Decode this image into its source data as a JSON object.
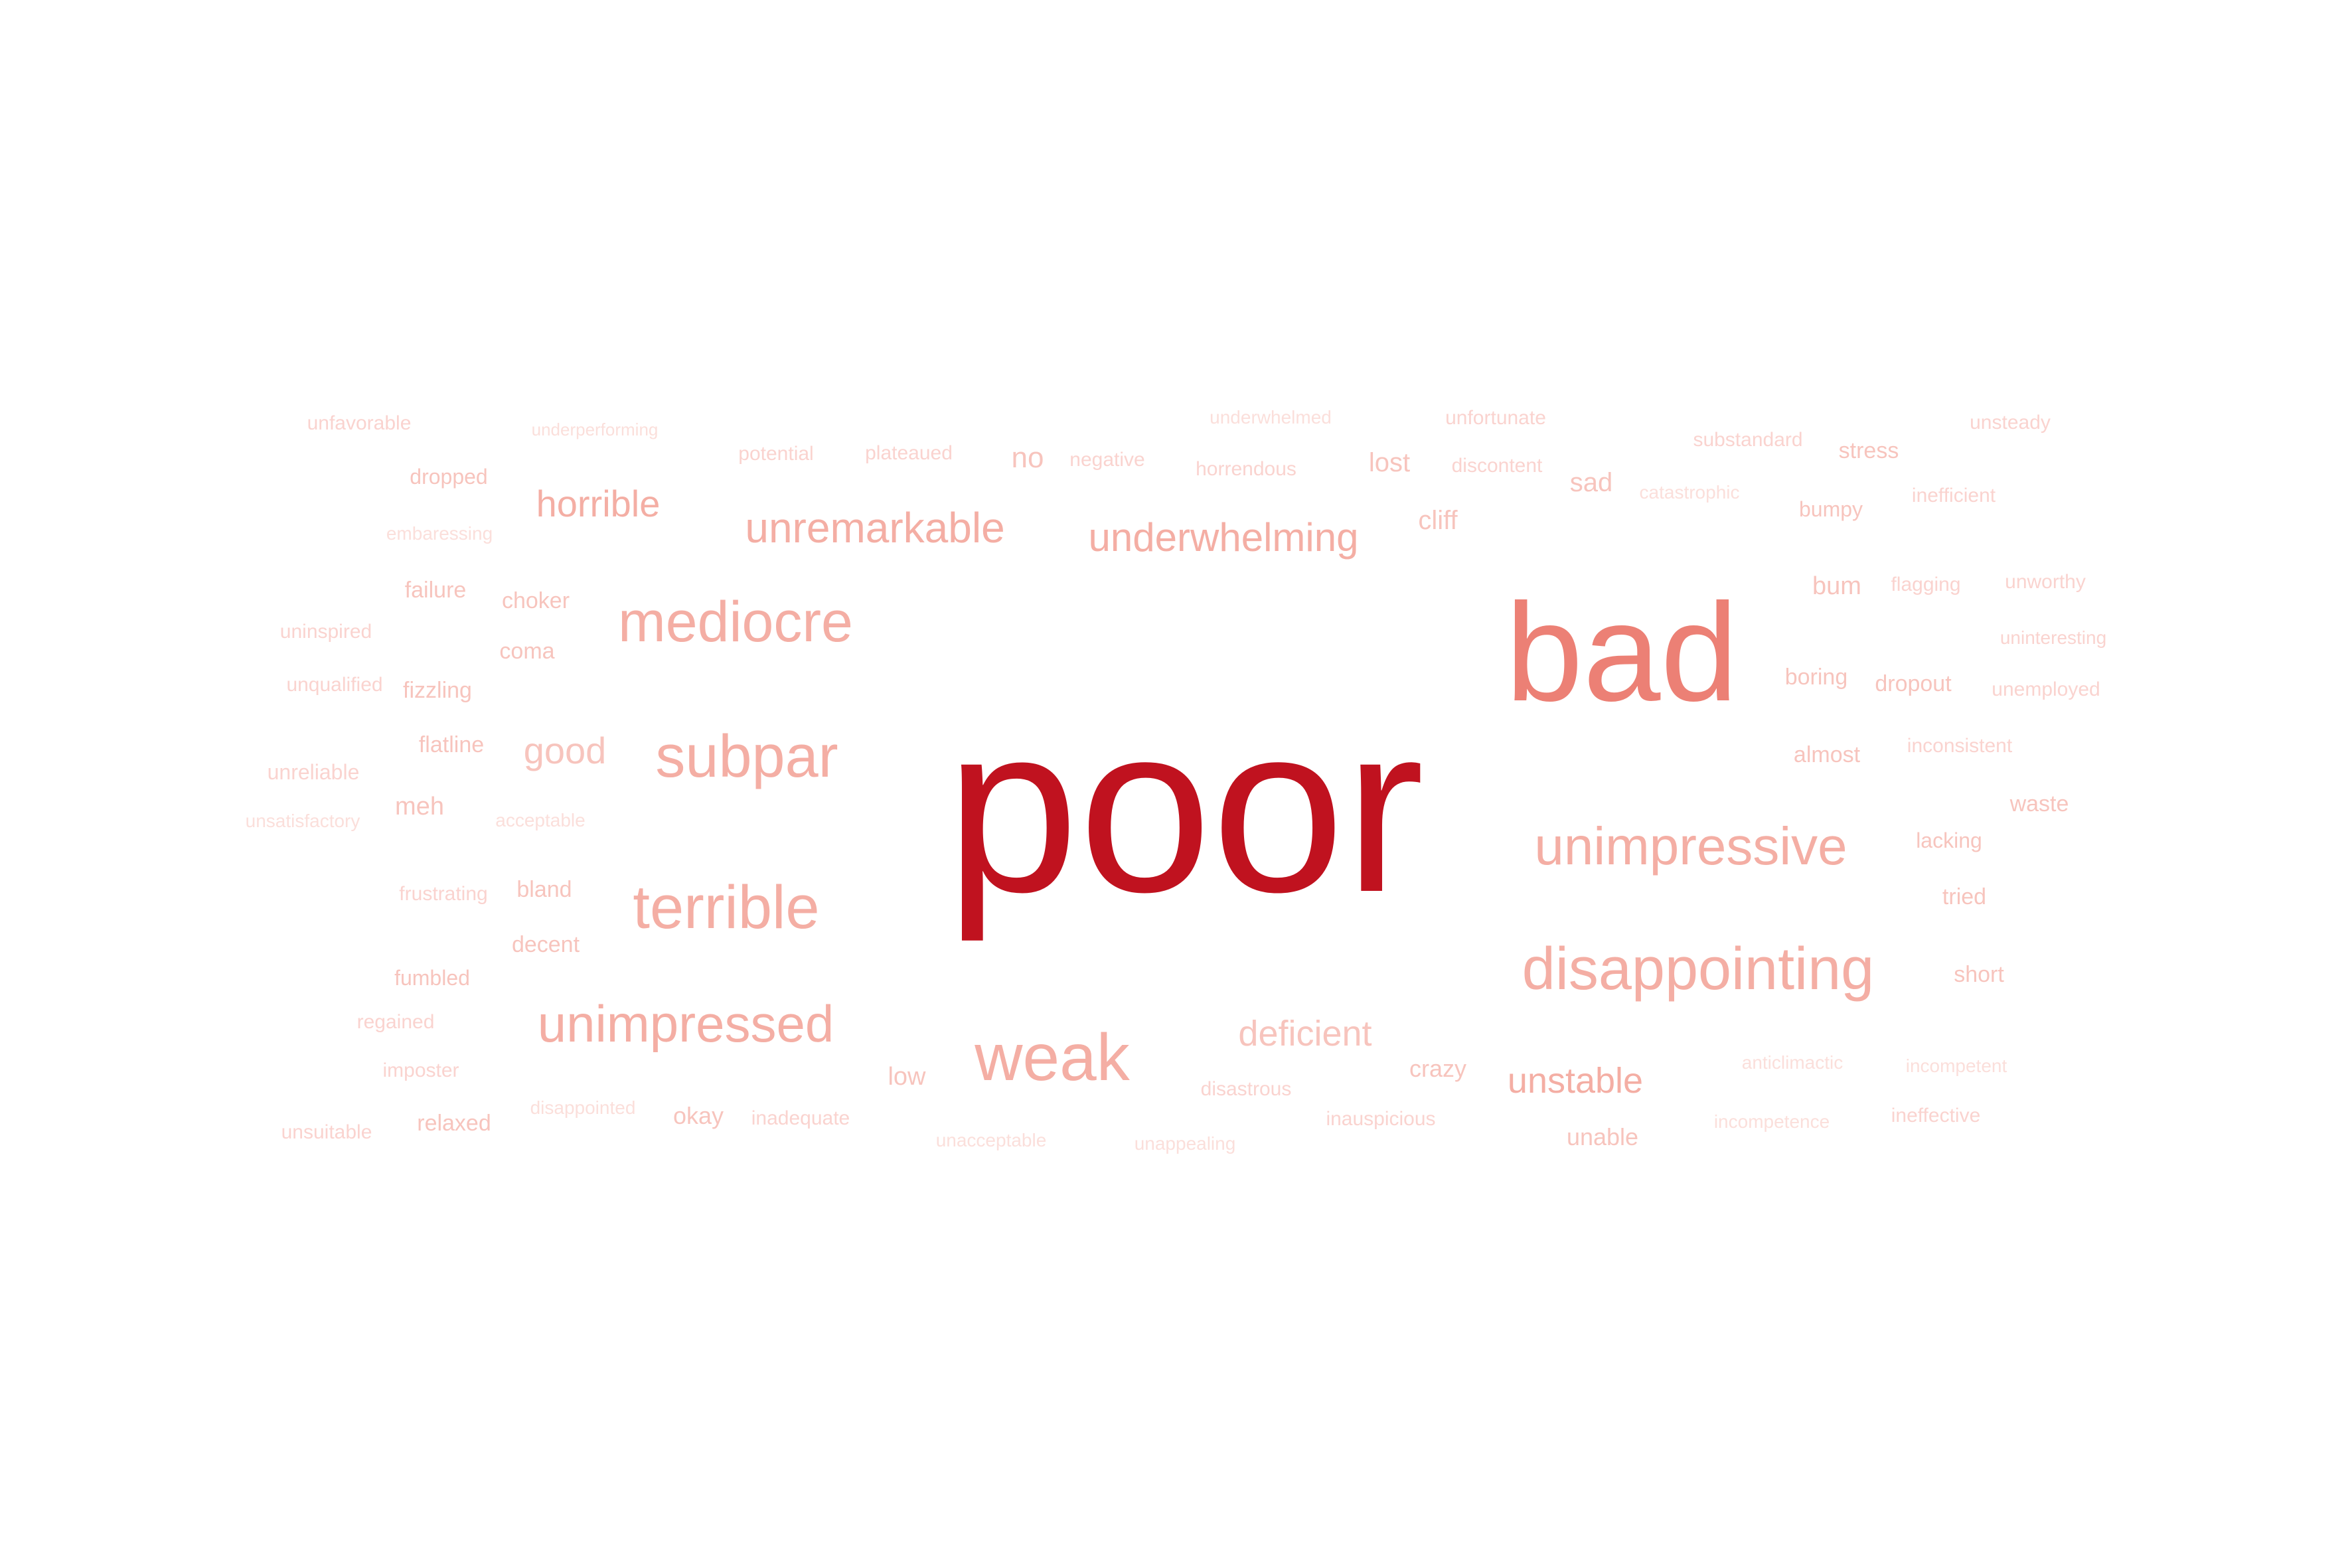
{
  "palette": [
    "#c0121f",
    "#ec8075",
    "#f4aea4",
    "#f7c4bd",
    "#fad3cf",
    "#fbdfdb"
  ],
  "words": [
    {
      "text": "poor",
      "weight": 1.0,
      "color": "#c0121f"
    },
    {
      "text": "bad",
      "weight": 0.58,
      "color": "#ec8075"
    },
    {
      "text": "disappointing",
      "weight": 0.3,
      "color": "#f4aea4"
    },
    {
      "text": "unimpressive",
      "weight": 0.27,
      "color": "#f4aea4"
    },
    {
      "text": "weak",
      "weight": 0.3,
      "color": "#f4aea4"
    },
    {
      "text": "terrible",
      "weight": 0.28,
      "color": "#f4aea4"
    },
    {
      "text": "subpar",
      "weight": 0.28,
      "color": "#f4aea4"
    },
    {
      "text": "mediocre",
      "weight": 0.28,
      "color": "#f4aea4"
    },
    {
      "text": "unimpressed",
      "weight": 0.26,
      "color": "#f4aea4"
    },
    {
      "text": "unremarkable",
      "weight": 0.2,
      "color": "#f4aea4"
    },
    {
      "text": "underwhelming",
      "weight": 0.2,
      "color": "#f4aea4"
    },
    {
      "text": "horrible",
      "weight": 0.18,
      "color": "#f4aea4"
    },
    {
      "text": "unstable",
      "weight": 0.18,
      "color": "#f4aea4"
    },
    {
      "text": "deficient",
      "weight": 0.18,
      "color": "#f7c4bd"
    },
    {
      "text": "good",
      "weight": 0.18,
      "color": "#f7c4bd"
    },
    {
      "text": "no",
      "weight": 0.14,
      "color": "#f7c4bd"
    },
    {
      "text": "lost",
      "weight": 0.13,
      "color": "#f7c4bd"
    },
    {
      "text": "sad",
      "weight": 0.13,
      "color": "#f7c4bd"
    },
    {
      "text": "cliff",
      "weight": 0.13,
      "color": "#f7c4bd"
    },
    {
      "text": "bum",
      "weight": 0.12,
      "color": "#f7c4bd"
    },
    {
      "text": "meh",
      "weight": 0.12,
      "color": "#f7c4bd"
    },
    {
      "text": "low",
      "weight": 0.12,
      "color": "#f7c4bd"
    },
    {
      "text": "crazy",
      "weight": 0.11,
      "color": "#f7c4bd"
    },
    {
      "text": "okay",
      "weight": 0.11,
      "color": "#f7c4bd"
    },
    {
      "text": "unable",
      "weight": 0.11,
      "color": "#f7c4bd"
    },
    {
      "text": "stress",
      "weight": 0.11,
      "color": "#f7c4bd"
    },
    {
      "text": "boring",
      "weight": 0.1,
      "color": "#f7c4bd"
    },
    {
      "text": "dropout",
      "weight": 0.1,
      "color": "#f7c4bd"
    },
    {
      "text": "almost",
      "weight": 0.1,
      "color": "#f7c4bd"
    },
    {
      "text": "waste",
      "weight": 0.1,
      "color": "#f7c4bd"
    },
    {
      "text": "tried",
      "weight": 0.1,
      "color": "#f7c4bd"
    },
    {
      "text": "short",
      "weight": 0.1,
      "color": "#f7c4bd"
    },
    {
      "text": "bland",
      "weight": 0.1,
      "color": "#f7c4bd"
    },
    {
      "text": "decent",
      "weight": 0.1,
      "color": "#f7c4bd"
    },
    {
      "text": "coma",
      "weight": 0.1,
      "color": "#f7c4bd"
    },
    {
      "text": "failure",
      "weight": 0.1,
      "color": "#f7c4bd"
    },
    {
      "text": "choker",
      "weight": 0.1,
      "color": "#f7c4bd"
    },
    {
      "text": "relaxed",
      "weight": 0.1,
      "color": "#f7c4bd"
    },
    {
      "text": "fizzling",
      "weight": 0.1,
      "color": "#f7c4bd"
    },
    {
      "text": "flatline",
      "weight": 0.1,
      "color": "#f7c4bd"
    },
    {
      "text": "dropped",
      "weight": 0.1,
      "color": "#f7c4bd"
    },
    {
      "text": "fumbled",
      "weight": 0.09,
      "color": "#f7c4bd"
    },
    {
      "text": "bumpy",
      "weight": 0.1,
      "color": "#f7c4bd"
    },
    {
      "text": "lacking",
      "weight": 0.1,
      "color": "#f7c4bd"
    },
    {
      "text": "unreliable",
      "weight": 0.09,
      "color": "#fad3cf"
    },
    {
      "text": "flagging",
      "weight": 0.09,
      "color": "#fad3cf"
    },
    {
      "text": "unworthy",
      "weight": 0.09,
      "color": "#fad3cf"
    },
    {
      "text": "unsteady",
      "weight": 0.09,
      "color": "#fad3cf"
    },
    {
      "text": "inefficient",
      "weight": 0.09,
      "color": "#fad3cf"
    },
    {
      "text": "potential",
      "weight": 0.09,
      "color": "#fad3cf"
    },
    {
      "text": "plateaued",
      "weight": 0.09,
      "color": "#fad3cf"
    },
    {
      "text": "negative",
      "weight": 0.09,
      "color": "#fad3cf"
    },
    {
      "text": "discontent",
      "weight": 0.09,
      "color": "#fad3cf"
    },
    {
      "text": "unfortunate",
      "weight": 0.09,
      "color": "#fad3cf"
    },
    {
      "text": "horrendous",
      "weight": 0.09,
      "color": "#fad3cf"
    },
    {
      "text": "substandard",
      "weight": 0.09,
      "color": "#fad3cf"
    },
    {
      "text": "ineffective",
      "weight": 0.09,
      "color": "#fad3cf"
    },
    {
      "text": "imposter",
      "weight": 0.09,
      "color": "#fad3cf"
    },
    {
      "text": "regained",
      "weight": 0.09,
      "color": "#fad3cf"
    },
    {
      "text": "frustrating",
      "weight": 0.09,
      "color": "#fad3cf"
    },
    {
      "text": "uninspired",
      "weight": 0.09,
      "color": "#fad3cf"
    },
    {
      "text": "unqualified",
      "weight": 0.09,
      "color": "#fad3cf"
    },
    {
      "text": "unsuitable",
      "weight": 0.09,
      "color": "#fad3cf"
    },
    {
      "text": "unfavorable",
      "weight": 0.09,
      "color": "#fad3cf"
    },
    {
      "text": "disastrous",
      "weight": 0.09,
      "color": "#fad3cf"
    },
    {
      "text": "inadequate",
      "weight": 0.09,
      "color": "#fad3cf"
    },
    {
      "text": "inauspicious",
      "weight": 0.09,
      "color": "#fad3cf"
    },
    {
      "text": "unemployed",
      "weight": 0.09,
      "color": "#fad3cf"
    },
    {
      "text": "inconsistent",
      "weight": 0.09,
      "color": "#fad3cf"
    },
    {
      "text": "uninteresting",
      "weight": 0.09,
      "color": "#fad3cf"
    },
    {
      "text": "underperforming",
      "weight": 0.08,
      "color": "#fbdfdb"
    },
    {
      "text": "underwhelmed",
      "weight": 0.08,
      "color": "#fbdfdb"
    },
    {
      "text": "catastrophic",
      "weight": 0.08,
      "color": "#fbdfdb"
    },
    {
      "text": "embaressing",
      "weight": 0.08,
      "color": "#fbdfdb"
    },
    {
      "text": "unsatisfactory",
      "weight": 0.08,
      "color": "#fbdfdb"
    },
    {
      "text": "acceptable",
      "weight": 0.08,
      "color": "#fbdfdb"
    },
    {
      "text": "disappointed",
      "weight": 0.08,
      "color": "#fbdfdb"
    },
    {
      "text": "unacceptable",
      "weight": 0.08,
      "color": "#fbdfdb"
    },
    {
      "text": "unappealing",
      "weight": 0.08,
      "color": "#fbdfdb"
    },
    {
      "text": "anticlimactic",
      "weight": 0.08,
      "color": "#fbdfdb"
    },
    {
      "text": "incompetent",
      "weight": 0.08,
      "color": "#fbdfdb"
    },
    {
      "text": "incompetence",
      "weight": 0.08,
      "color": "#fbdfdb"
    }
  ]
}
